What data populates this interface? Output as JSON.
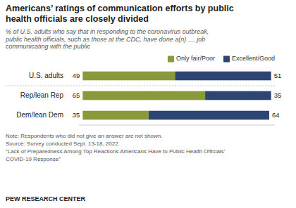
{
  "chart_data": {
    "type": "bar",
    "orientation": "horizontal",
    "stacked": true,
    "data_labels": true,
    "tick_labels": "y",
    "legend": "top right",
    "title": "Americans’ ratings of communication efforts by public\nhealth officials are closely divided",
    "subtitle": "% of U.S. adults who say that in responding to the coronavirus outbreak,\npublic health officials, such as those at the CDC, have done a(n) __ job\ncommunicating with the public",
    "categories": [
      "U.S. adults",
      "Rep/lean Rep",
      "Dem/lean Dem"
    ],
    "series": [
      {
        "name": "Only fair/Poor",
        "color": "#8a9a3b",
        "values": [
          49,
          65,
          35
        ]
      },
      {
        "name": "Excellent/Good",
        "color": "#2e4572",
        "values": [
          51,
          35,
          64
        ]
      }
    ],
    "xlim": [
      -2,
      102
    ],
    "xticks": [],
    "annotations": [
      "Note: Respondents who did not give an answer are not shown.",
      "Source: Survey conducted Sept. 13-18, 2022.",
      "“Lack of Preparedness Among Top Reactions Americans Have to Public Health Officials’",
      "COVID-19 Response”",
      "PEW RESEARCH CENTER"
    ]
  }
}
